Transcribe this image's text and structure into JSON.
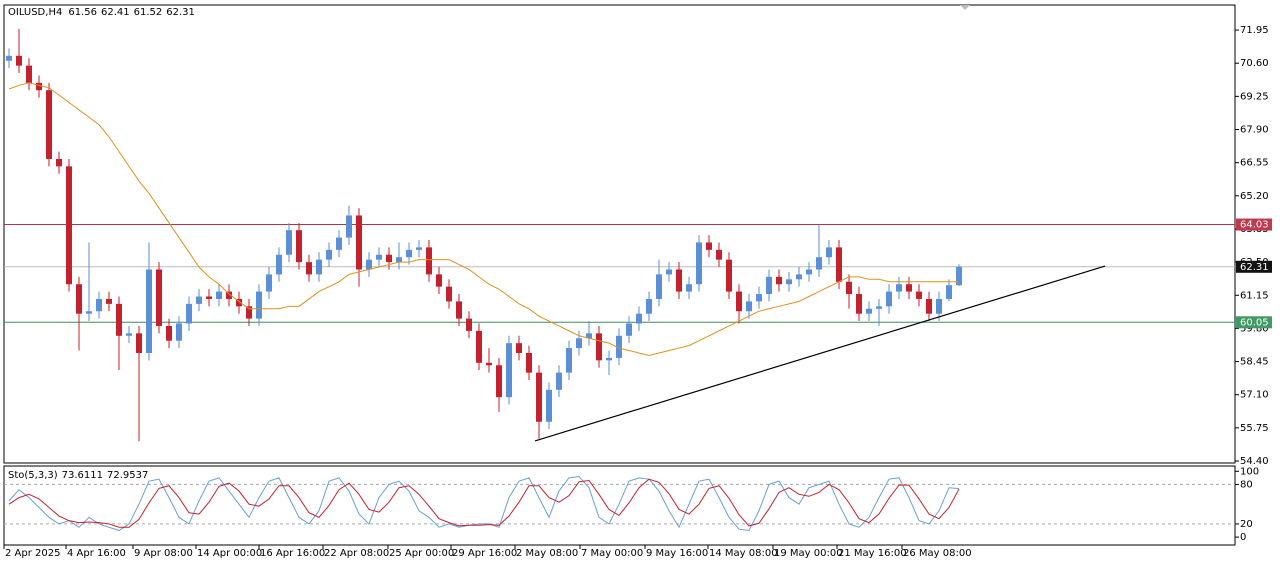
{
  "chart_data": [
    {
      "type": "candlestick",
      "symbol": "OILUSD,H4",
      "xlim": [
        -0.5,
        122.6
      ],
      "ylim": [
        54.32,
        72.97
      ],
      "yticks": [
        71.95,
        {
          "value": 70.6,
          "label": "70.60"
        },
        69.25,
        {
          "value": 67.9,
          "label": "67.90"
        },
        66.55,
        {
          "value": 65.2,
          "label": "65.20"
        },
        63.85,
        {
          "value": 62.5,
          "label": "62.50"
        },
        61.15,
        {
          "value": 59.8,
          "label": "59.80"
        },
        58.45,
        {
          "value": 57.1,
          "label": "57.10"
        },
        55.75,
        {
          "value": 54.4,
          "label": "54.40"
        }
      ],
      "xticks": [
        {
          "value": -0.5,
          "label": "2 Apr 2025"
        },
        {
          "value": 5.7,
          "label": "4 Apr 16:00"
        },
        {
          "value": 12.4,
          "label": "9 Apr 08:00"
        },
        {
          "value": 18.7,
          "label": "14 Apr 00:00"
        },
        {
          "value": 25,
          "label": "16 Apr 16:00"
        },
        {
          "value": 31.4,
          "label": "22 Apr 08:00"
        },
        {
          "value": 37.9,
          "label": "25 Apr 00:00"
        },
        {
          "value": 44.2,
          "label": "29 Apr 16:00"
        },
        {
          "value": 50.6,
          "label": "2 May 08:00"
        },
        {
          "value": 57.1,
          "label": "7 May 00:00"
        },
        {
          "value": 63.6,
          "label": "9 May 16:00"
        },
        {
          "value": 69.9,
          "label": "14 May 08:00"
        },
        {
          "value": 76.4,
          "label": "19 May 00:00"
        },
        {
          "value": 82.8,
          "label": "21 May 16:00"
        },
        {
          "value": 89.3,
          "label": "26 May 08:00"
        }
      ],
      "up_color": "#5b8fd6",
      "down_color": "#c4212e",
      "open": [
        70.7,
        70.9,
        70.5,
        69.8,
        69.5,
        66.7,
        66.4,
        61.6,
        60.4,
        60.5,
        61.0,
        60.8,
        59.5,
        59.6,
        58.8,
        62.2,
        59.9,
        59.3,
        60.0,
        60.8,
        61.1,
        61.0,
        61.3,
        61.0,
        60.7,
        60.2,
        61.3,
        62.0,
        62.8,
        63.8,
        62.5,
        62.0,
        62.6,
        63.0,
        63.5,
        64.4,
        62.2,
        62.6,
        62.8,
        62.5,
        62.7,
        63.0,
        63.1,
        62.0,
        61.5,
        60.9,
        60.2,
        59.7,
        58.4,
        58.3,
        57.0,
        59.2,
        58.8,
        58.0,
        56.0,
        57.3,
        58.0,
        59.0,
        59.4,
        59.6,
        58.5,
        58.6,
        59.5,
        60.0,
        60.4,
        61.0,
        62.0,
        62.2,
        61.3,
        61.6,
        63.3,
        63.0,
        62.6,
        61.3,
        60.5,
        60.9,
        61.2,
        61.9,
        61.6,
        61.8,
        62.0,
        62.2,
        62.7,
        63.1,
        61.7,
        61.2,
        60.4,
        60.6,
        60.7,
        61.3,
        61.6,
        61.3,
        61.0,
        60.4,
        61.0,
        61.56
      ],
      "high": [
        71.2,
        72.0,
        70.8,
        70.1,
        69.8,
        67.0,
        66.7,
        61.9,
        63.3,
        61.3,
        61.3,
        61.1,
        59.9,
        59.9,
        63.3,
        62.5,
        60.2,
        60.3,
        61.1,
        61.4,
        61.4,
        61.6,
        61.6,
        61.3,
        61.0,
        61.6,
        62.3,
        63.1,
        64.1,
        64.1,
        62.8,
        62.9,
        63.3,
        63.8,
        64.8,
        64.7,
        62.9,
        63.1,
        63.1,
        63.3,
        63.3,
        63.4,
        63.4,
        62.3,
        61.8,
        61.2,
        60.5,
        60.0,
        59.0,
        58.6,
        59.5,
        59.5,
        59.1,
        58.3,
        57.6,
        58.3,
        59.3,
        59.7,
        60.1,
        59.9,
        58.9,
        59.8,
        60.3,
        60.7,
        61.3,
        62.6,
        62.5,
        62.5,
        61.9,
        63.6,
        63.6,
        63.3,
        62.9,
        61.6,
        61.2,
        61.5,
        62.2,
        62.2,
        62.1,
        62.3,
        62.5,
        64.0,
        63.4,
        63.4,
        62.0,
        61.5,
        60.9,
        61.0,
        61.6,
        61.9,
        61.9,
        61.6,
        61.3,
        61.3,
        61.8,
        62.41
      ],
      "low": [
        70.4,
        70.2,
        69.5,
        69.2,
        66.4,
        66.1,
        61.3,
        58.9,
        60.1,
        60.2,
        60.5,
        58.1,
        59.2,
        55.2,
        58.5,
        59.6,
        59.0,
        59.0,
        59.7,
        60.5,
        60.7,
        60.7,
        60.7,
        60.4,
        59.9,
        59.9,
        61.0,
        61.7,
        62.5,
        62.2,
        61.7,
        61.7,
        62.3,
        62.7,
        63.2,
        61.5,
        61.9,
        62.3,
        62.2,
        62.2,
        62.4,
        62.7,
        61.7,
        61.2,
        60.6,
        59.9,
        59.4,
        58.1,
        58.0,
        56.4,
        56.7,
        58.5,
        57.7,
        55.3,
        55.7,
        57.0,
        57.7,
        58.7,
        59.1,
        58.2,
        57.9,
        58.3,
        59.2,
        59.7,
        60.1,
        60.7,
        61.7,
        61.0,
        61.0,
        61.3,
        62.7,
        62.3,
        61.0,
        60.0,
        60.2,
        60.6,
        60.9,
        61.3,
        61.3,
        61.5,
        61.7,
        61.9,
        62.4,
        61.4,
        60.6,
        60.1,
        60.1,
        59.9,
        60.4,
        61.0,
        61.0,
        60.7,
        60.1,
        60.1,
        60.9,
        61.52
      ],
      "close": [
        70.9,
        70.5,
        69.8,
        69.5,
        66.7,
        66.4,
        61.6,
        60.4,
        60.5,
        61.0,
        60.8,
        59.5,
        59.6,
        58.8,
        62.2,
        59.9,
        59.3,
        60.0,
        60.8,
        61.1,
        61.0,
        61.3,
        61.0,
        60.7,
        60.2,
        61.3,
        62.0,
        62.8,
        63.8,
        62.5,
        62.0,
        62.6,
        63.0,
        63.5,
        64.4,
        62.2,
        62.6,
        62.8,
        62.5,
        62.7,
        63.0,
        63.1,
        62.0,
        61.5,
        60.9,
        60.2,
        59.7,
        58.4,
        58.3,
        57.0,
        59.2,
        58.8,
        58.0,
        56.0,
        57.3,
        58.0,
        59.0,
        59.4,
        59.6,
        58.5,
        58.6,
        59.5,
        60.0,
        60.4,
        61.0,
        62.0,
        62.2,
        61.3,
        61.6,
        63.3,
        63.0,
        62.6,
        61.3,
        60.5,
        60.9,
        61.2,
        61.9,
        61.6,
        61.8,
        62.0,
        62.2,
        62.7,
        63.1,
        61.7,
        61.2,
        60.4,
        60.6,
        60.7,
        61.3,
        61.6,
        61.3,
        61.0,
        60.4,
        61.0,
        61.56,
        62.31
      ],
      "overlay": {
        "color": "#e0901e",
        "values": [
          69.55,
          69.7,
          69.8,
          69.7,
          69.6,
          69.3,
          69.0,
          68.7,
          68.4,
          68.1,
          67.6,
          67.0,
          66.4,
          65.8,
          65.3,
          64.7,
          64.1,
          63.5,
          62.9,
          62.3,
          61.9,
          61.6,
          61.2,
          60.9,
          60.6,
          60.6,
          60.6,
          60.6,
          60.7,
          60.7,
          61.0,
          61.3,
          61.5,
          61.7,
          62.0,
          62.1,
          62.2,
          62.3,
          62.4,
          62.5,
          62.5,
          62.6,
          62.6,
          62.6,
          62.6,
          62.4,
          62.2,
          61.9,
          61.6,
          61.4,
          61.1,
          60.8,
          60.6,
          60.3,
          60.1,
          59.9,
          59.7,
          59.5,
          59.4,
          59.3,
          59.2,
          59.0,
          58.9,
          58.8,
          58.7,
          58.8,
          58.9,
          59.0,
          59.1,
          59.3,
          59.5,
          59.7,
          59.9,
          60.1,
          60.3,
          60.5,
          60.6,
          60.7,
          60.8,
          60.9,
          61.1,
          61.3,
          61.5,
          61.7,
          61.9,
          61.9,
          61.8,
          61.8,
          61.7,
          61.7,
          61.7,
          61.7,
          61.7,
          61.7,
          61.7,
          61.7
        ]
      },
      "hlines": [
        {
          "value": 64.03,
          "color": "#b2344a",
          "label_bg": "#c0394f"
        },
        {
          "value": 62.31,
          "color": "#bbbbbb",
          "label_bg": "#111111"
        },
        {
          "value": 60.05,
          "color": "#3f8c5e",
          "label_bg": "#3f9a63"
        }
      ],
      "trendline": {
        "color": "#000000",
        "x": [
          52.6,
          109.6
        ],
        "y": [
          55.22,
          62.34
        ]
      }
    },
    {
      "type": "line",
      "title": "Sto(5,3,3)",
      "ylim": [
        -12,
        108
      ],
      "yticks": [
        100,
        80,
        20,
        0
      ],
      "levels": [
        80,
        20
      ],
      "series": [
        {
          "color": "#6a9fd8",
          "values": [
            55,
            72,
            60,
            45,
            30,
            20,
            25,
            15,
            30,
            20,
            15,
            10,
            20,
            50,
            85,
            88,
            60,
            30,
            20,
            55,
            85,
            90,
            70,
            50,
            30,
            60,
            85,
            90,
            60,
            30,
            20,
            40,
            85,
            90,
            70,
            35,
            20,
            60,
            80,
            85,
            70,
            40,
            30,
            15,
            20,
            15,
            18,
            20,
            20,
            15,
            60,
            85,
            90,
            60,
            30,
            70,
            90,
            92,
            75,
            30,
            20,
            50,
            85,
            90,
            88,
            70,
            40,
            15,
            50,
            85,
            88,
            60,
            30,
            12,
            10,
            40,
            80,
            85,
            60,
            50,
            75,
            80,
            85,
            50,
            20,
            15,
            30,
            60,
            88,
            90,
            60,
            25,
            20,
            40,
            75,
            73.6111
          ]
        },
        {
          "color": "#c4212e",
          "values": [
            50,
            60,
            65,
            58,
            45,
            32,
            25,
            22,
            23,
            22,
            20,
            15,
            15,
            27,
            52,
            74,
            78,
            60,
            37,
            35,
            53,
            77,
            82,
            70,
            50,
            47,
            58,
            78,
            78,
            60,
            37,
            30,
            48,
            72,
            82,
            65,
            42,
            38,
            53,
            75,
            78,
            65,
            47,
            28,
            22,
            17,
            18,
            18,
            19,
            18,
            32,
            53,
            78,
            78,
            60,
            53,
            63,
            84,
            86,
            65,
            42,
            33,
            52,
            75,
            88,
            83,
            66,
            42,
            35,
            50,
            74,
            78,
            59,
            34,
            17,
            21,
            43,
            68,
            75,
            65,
            62,
            68,
            80,
            72,
            52,
            28,
            22,
            35,
            59,
            79,
            79,
            58,
            35,
            28,
            45,
            72.9537
          ]
        }
      ]
    }
  ]
}
